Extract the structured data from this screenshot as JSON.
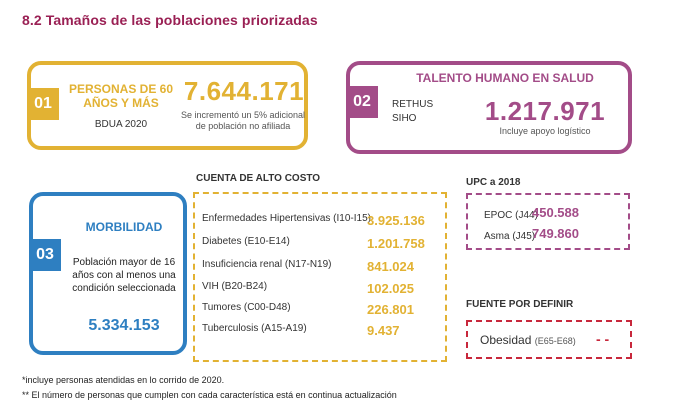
{
  "title": "8.2 Tamaños de las poblaciones priorizadas",
  "card1": {
    "number_badge": "01",
    "label_line1": "PERSONAS DE 60",
    "label_line2": "AÑOS Y MÁS",
    "source": "BDUA 2020",
    "value": "7.644.171",
    "note_line1": "Se incrementó un 5% adicional",
    "note_line2": "de población no afiliada",
    "color": "#e2b233"
  },
  "card2": {
    "number_badge": "02",
    "label": "TALENTO HUMANO EN SALUD",
    "sources": [
      "RETHUS",
      "SIHO"
    ],
    "value": "1.217.971",
    "note": "Incluye apoyo logístico",
    "color": "#a34c88"
  },
  "card3": {
    "number_badge": "03",
    "label": "MORBILIDAD",
    "desc_line1": "Población mayor de 16",
    "desc_line2": "años con al menos una",
    "desc_line3": "condición seleccionada",
    "value": "5.334.153",
    "color": "#2e7fc1"
  },
  "cac": {
    "heading": "CUENTA DE ALTO COSTO",
    "rows": [
      {
        "label": "Enfermedades Hipertensivas (I10-I15)",
        "value": "3.925.136"
      },
      {
        "label": "Diabetes (E10-E14)",
        "value": "1.201.758"
      },
      {
        "label": "Insuficiencia renal (N17-N19)",
        "value": "841.024"
      },
      {
        "label": "VIH (B20-B24)",
        "value": "102.025"
      },
      {
        "label": "Tumores (C00-D48)",
        "value": "226.801"
      },
      {
        "label": "Tuberculosis (A15-A19)",
        "value": "9.437"
      }
    ]
  },
  "upc": {
    "heading": "UPC a 2018",
    "rows": [
      {
        "label": "EPOC (J44)",
        "value": "450.588"
      },
      {
        "label": "Asma (J45)",
        "value": "749.860"
      }
    ]
  },
  "fpd": {
    "heading": "FUENTE POR DEFINIR",
    "label": "Obesidad",
    "code": "(E65-E68)",
    "value": "- -",
    "color": "#c8283c"
  },
  "footnotes": [
    "*incluye personas atendidas en lo corrido de 2020.",
    "** El número de personas que cumplen con cada característica está en continua actualización"
  ]
}
